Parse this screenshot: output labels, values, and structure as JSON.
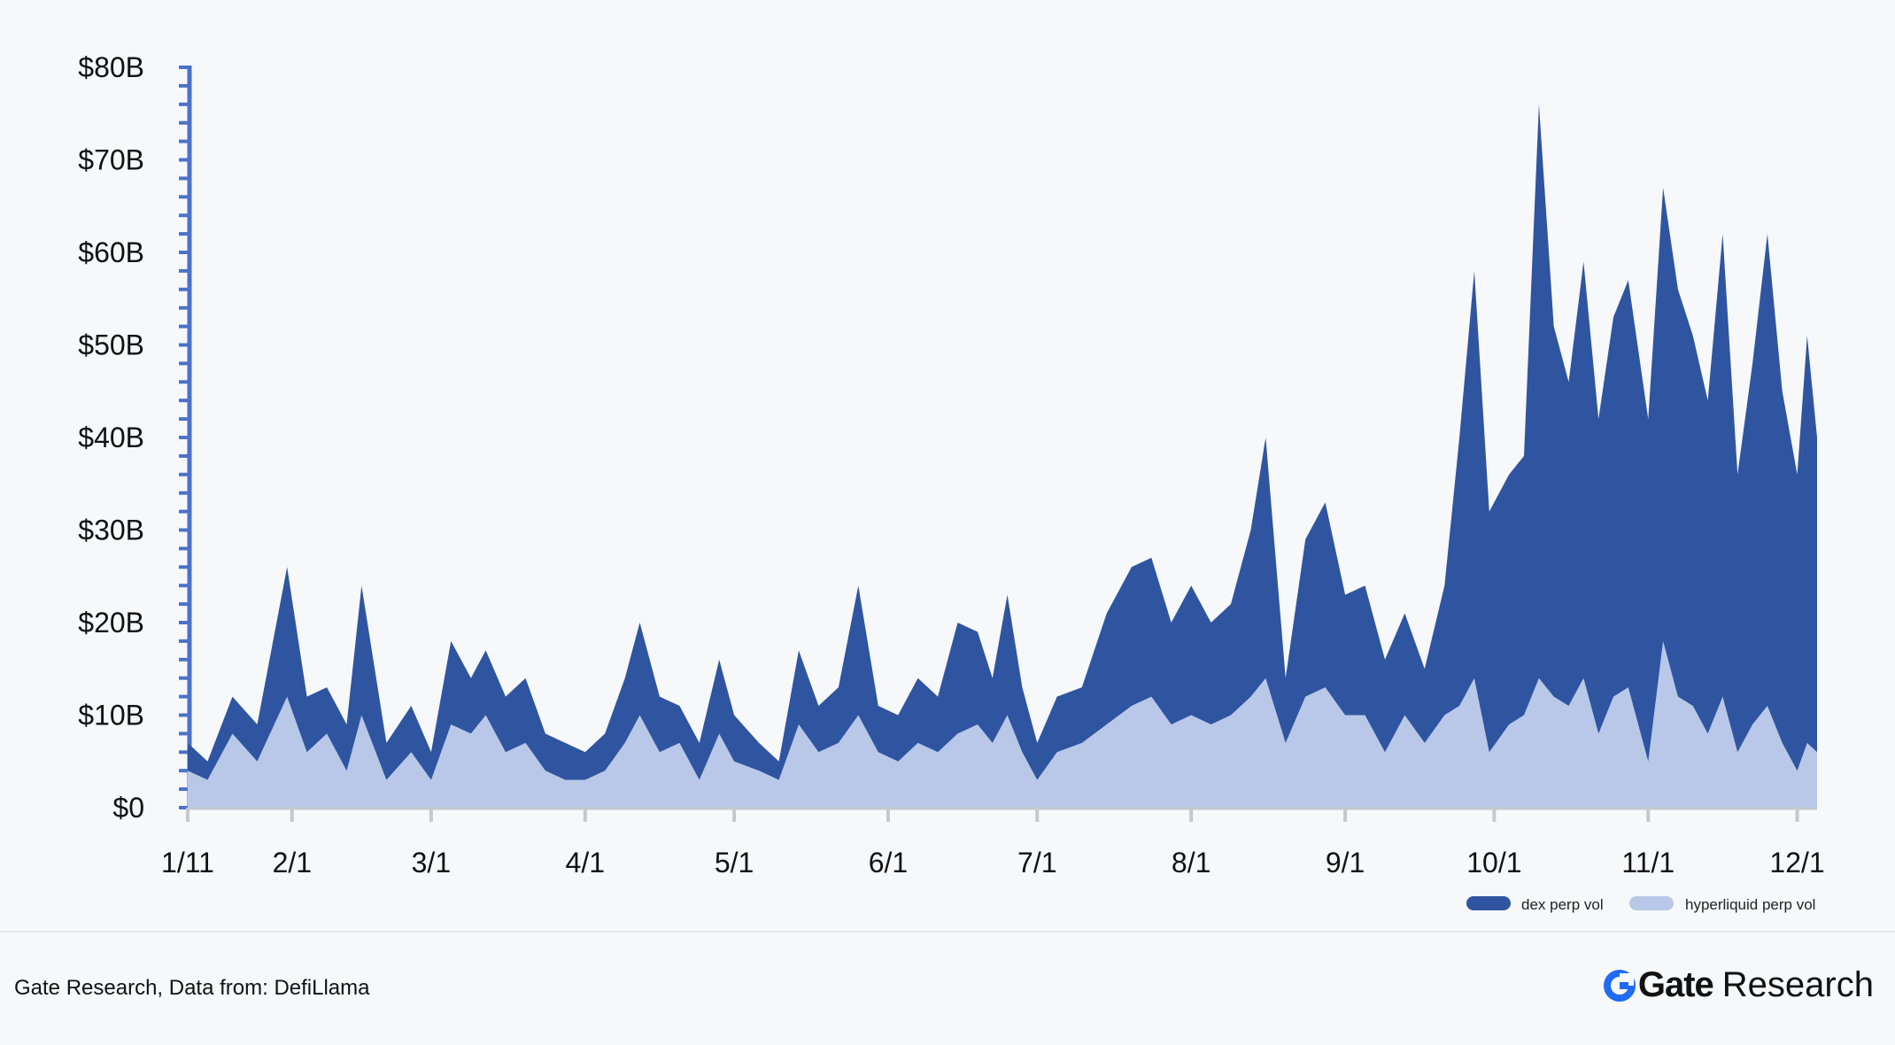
{
  "chart_data": {
    "type": "area",
    "stacked": true,
    "x_ticks": [
      "1/11",
      "2/1",
      "3/1",
      "4/1",
      "5/1",
      "6/1",
      "7/1",
      "8/1",
      "9/1",
      "10/1",
      "11/1",
      "12/1"
    ],
    "y_ticks": [
      "$0",
      "$10B",
      "$20B",
      "$30B",
      "$40B",
      "$50B",
      "$60B",
      "$70B",
      "$80B"
    ],
    "ylim": [
      0,
      80
    ],
    "y_unit": "$B",
    "x_range": [
      "1/11",
      "12/5"
    ],
    "legend_position": "bottom-right",
    "grid": false,
    "series": [
      {
        "name": "dex perp vol",
        "color": "#2f55a0",
        "points": [
          [
            "1/11",
            7
          ],
          [
            "1/15",
            5
          ],
          [
            "1/20",
            12
          ],
          [
            "1/25",
            9
          ],
          [
            "1/31",
            26
          ],
          [
            "2/4",
            12
          ],
          [
            "2/8",
            13
          ],
          [
            "2/12",
            9
          ],
          [
            "2/15",
            24
          ],
          [
            "2/20",
            7
          ],
          [
            "2/25",
            11
          ],
          [
            "3/1",
            6
          ],
          [
            "3/5",
            18
          ],
          [
            "3/9",
            14
          ],
          [
            "3/12",
            17
          ],
          [
            "3/16",
            12
          ],
          [
            "3/20",
            14
          ],
          [
            "3/24",
            8
          ],
          [
            "3/28",
            7
          ],
          [
            "4/1",
            6
          ],
          [
            "4/5",
            8
          ],
          [
            "4/9",
            14
          ],
          [
            "4/12",
            20
          ],
          [
            "4/16",
            12
          ],
          [
            "4/20",
            11
          ],
          [
            "4/24",
            7
          ],
          [
            "4/28",
            16
          ],
          [
            "5/1",
            10
          ],
          [
            "5/6",
            7
          ],
          [
            "5/10",
            5
          ],
          [
            "5/14",
            17
          ],
          [
            "5/18",
            11
          ],
          [
            "5/22",
            13
          ],
          [
            "5/26",
            24
          ],
          [
            "5/30",
            11
          ],
          [
            "6/3",
            10
          ],
          [
            "6/7",
            14
          ],
          [
            "6/11",
            12
          ],
          [
            "6/15",
            20
          ],
          [
            "6/19",
            19
          ],
          [
            "6/22",
            14
          ],
          [
            "6/25",
            23
          ],
          [
            "6/28",
            13
          ],
          [
            "7/1",
            7
          ],
          [
            "7/5",
            12
          ],
          [
            "7/10",
            13
          ],
          [
            "7/15",
            21
          ],
          [
            "7/20",
            26
          ],
          [
            "7/24",
            27
          ],
          [
            "7/28",
            20
          ],
          [
            "8/1",
            24
          ],
          [
            "8/5",
            20
          ],
          [
            "8/9",
            22
          ],
          [
            "8/13",
            30
          ],
          [
            "8/16",
            40
          ],
          [
            "8/20",
            14
          ],
          [
            "8/24",
            29
          ],
          [
            "8/28",
            33
          ],
          [
            "9/1",
            23
          ],
          [
            "9/5",
            24
          ],
          [
            "9/9",
            16
          ],
          [
            "9/13",
            21
          ],
          [
            "9/17",
            15
          ],
          [
            "9/21",
            24
          ],
          [
            "9/24",
            40
          ],
          [
            "9/27",
            58
          ],
          [
            "9/30",
            32
          ],
          [
            "10/4",
            36
          ],
          [
            "10/7",
            38
          ],
          [
            "10/10",
            76
          ],
          [
            "10/13",
            52
          ],
          [
            "10/16",
            46
          ],
          [
            "10/19",
            59
          ],
          [
            "10/22",
            42
          ],
          [
            "10/25",
            53
          ],
          [
            "10/28",
            57
          ],
          [
            "11/1",
            42
          ],
          [
            "11/4",
            67
          ],
          [
            "11/7",
            56
          ],
          [
            "11/10",
            51
          ],
          [
            "11/13",
            44
          ],
          [
            "11/16",
            62
          ],
          [
            "11/19",
            36
          ],
          [
            "11/22",
            48
          ],
          [
            "11/25",
            62
          ],
          [
            "11/28",
            45
          ],
          [
            "12/1",
            36
          ],
          [
            "12/3",
            51
          ],
          [
            "12/5",
            40
          ]
        ]
      },
      {
        "name": "hyperliquid perp vol",
        "color": "#b9c8e9",
        "points": [
          [
            "1/11",
            4
          ],
          [
            "1/15",
            3
          ],
          [
            "1/20",
            8
          ],
          [
            "1/25",
            5
          ],
          [
            "1/31",
            12
          ],
          [
            "2/4",
            6
          ],
          [
            "2/8",
            8
          ],
          [
            "2/12",
            4
          ],
          [
            "2/15",
            10
          ],
          [
            "2/20",
            3
          ],
          [
            "2/25",
            6
          ],
          [
            "3/1",
            3
          ],
          [
            "3/5",
            9
          ],
          [
            "3/9",
            8
          ],
          [
            "3/12",
            10
          ],
          [
            "3/16",
            6
          ],
          [
            "3/20",
            7
          ],
          [
            "3/24",
            4
          ],
          [
            "3/28",
            3
          ],
          [
            "4/1",
            3
          ],
          [
            "4/5",
            4
          ],
          [
            "4/9",
            7
          ],
          [
            "4/12",
            10
          ],
          [
            "4/16",
            6
          ],
          [
            "4/20",
            7
          ],
          [
            "4/24",
            3
          ],
          [
            "4/28",
            8
          ],
          [
            "5/1",
            5
          ],
          [
            "5/6",
            4
          ],
          [
            "5/10",
            3
          ],
          [
            "5/14",
            9
          ],
          [
            "5/18",
            6
          ],
          [
            "5/22",
            7
          ],
          [
            "5/26",
            10
          ],
          [
            "5/30",
            6
          ],
          [
            "6/3",
            5
          ],
          [
            "6/7",
            7
          ],
          [
            "6/11",
            6
          ],
          [
            "6/15",
            8
          ],
          [
            "6/19",
            9
          ],
          [
            "6/22",
            7
          ],
          [
            "6/25",
            10
          ],
          [
            "6/28",
            6
          ],
          [
            "7/1",
            3
          ],
          [
            "7/5",
            6
          ],
          [
            "7/10",
            7
          ],
          [
            "7/15",
            9
          ],
          [
            "7/20",
            11
          ],
          [
            "7/24",
            12
          ],
          [
            "7/28",
            9
          ],
          [
            "8/1",
            10
          ],
          [
            "8/5",
            9
          ],
          [
            "8/9",
            10
          ],
          [
            "8/13",
            12
          ],
          [
            "8/16",
            14
          ],
          [
            "8/20",
            7
          ],
          [
            "8/24",
            12
          ],
          [
            "8/28",
            13
          ],
          [
            "9/1",
            10
          ],
          [
            "9/5",
            10
          ],
          [
            "9/9",
            6
          ],
          [
            "9/13",
            10
          ],
          [
            "9/17",
            7
          ],
          [
            "9/21",
            10
          ],
          [
            "9/24",
            11
          ],
          [
            "9/27",
            14
          ],
          [
            "9/30",
            6
          ],
          [
            "10/4",
            9
          ],
          [
            "10/7",
            10
          ],
          [
            "10/10",
            14
          ],
          [
            "10/13",
            12
          ],
          [
            "10/16",
            11
          ],
          [
            "10/19",
            14
          ],
          [
            "10/22",
            8
          ],
          [
            "10/25",
            12
          ],
          [
            "10/28",
            13
          ],
          [
            "11/1",
            5
          ],
          [
            "11/4",
            18
          ],
          [
            "11/7",
            12
          ],
          [
            "11/10",
            11
          ],
          [
            "11/13",
            8
          ],
          [
            "11/16",
            12
          ],
          [
            "11/19",
            6
          ],
          [
            "11/22",
            9
          ],
          [
            "11/25",
            11
          ],
          [
            "11/28",
            7
          ],
          [
            "12/1",
            4
          ],
          [
            "12/3",
            7
          ],
          [
            "12/5",
            6
          ]
        ]
      }
    ]
  },
  "footer": {
    "source": "Gate Research, Data from: DefiLlama",
    "brand_name": "Gate",
    "brand_sub": "Research"
  },
  "colors": {
    "axis": "#4a72c9",
    "brand_accent": "#1f6cf2"
  },
  "icons": {
    "brand_logo": "gate-logo-icon"
  }
}
